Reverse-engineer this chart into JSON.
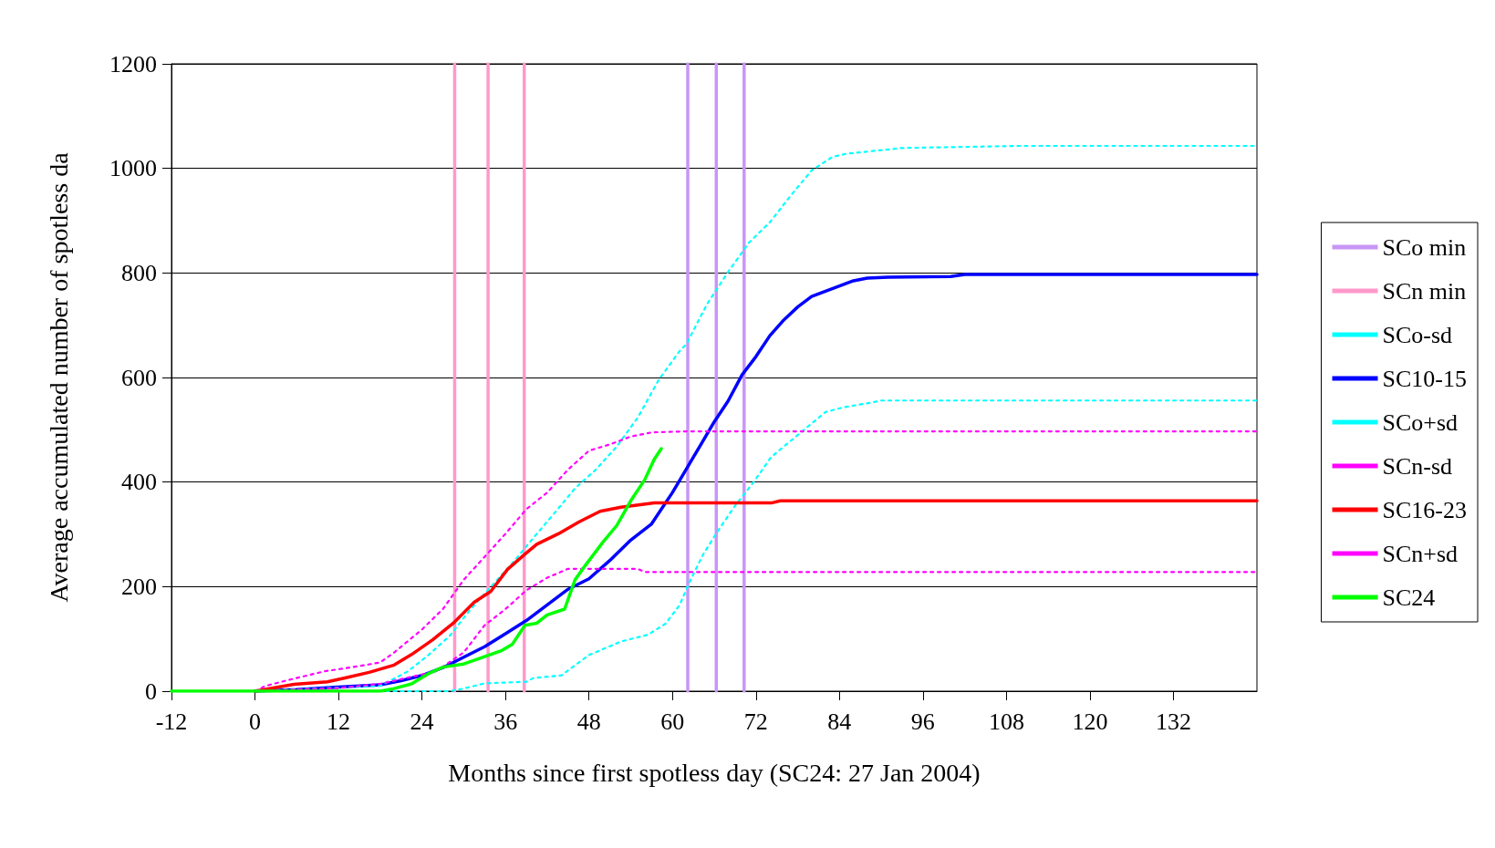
{
  "chart_data": {
    "type": "line",
    "xlabel": "Months since first spotless day (SC24: 27 Jan 2004)",
    "ylabel": "Average accumulated number of spotless da",
    "xlim": [
      -12,
      144
    ],
    "xticks": [
      -12,
      0,
      12,
      24,
      36,
      48,
      60,
      72,
      84,
      96,
      108,
      120,
      132
    ],
    "ylim": [
      0,
      1200
    ],
    "yticks": [
      0,
      200,
      400,
      600,
      800,
      1000,
      1200
    ],
    "grid": "y",
    "legend": "right",
    "marker": "none",
    "series": [
      {
        "name": "SCo min",
        "color": "#c896f5",
        "line_style": "solid",
        "x": [
          62.2,
          62.2
        ],
        "values": [
          0,
          1200
        ]
      },
      {
        "color": "#c896f5",
        "line_style": "solid",
        "x": [
          66.3,
          66.3
        ],
        "values": [
          0,
          1200
        ]
      },
      {
        "color": "#c896f5",
        "line_style": "solid",
        "x": [
          70.3,
          70.3
        ],
        "values": [
          0,
          1200
        ]
      },
      {
        "name": "SCn min",
        "color": "#ff99cc",
        "line_style": "solid",
        "x": [
          28.7,
          28.7
        ],
        "values": [
          0,
          1200
        ]
      },
      {
        "color": "#ff99cc",
        "line_style": "solid",
        "x": [
          33.5,
          33.5
        ],
        "values": [
          0,
          1200
        ]
      },
      {
        "color": "#ff99cc",
        "line_style": "solid",
        "x": [
          38.7,
          38.7
        ],
        "values": [
          0,
          1200
        ]
      },
      {
        "name": "SCo-sd",
        "color": "#00ffff",
        "line_style": "dotted",
        "x": [
          0,
          28,
          30,
          33,
          39,
          40,
          44,
          48,
          52.6,
          56.5,
          59,
          61,
          62.4,
          64.3,
          66.3,
          68.9,
          71.5,
          74.2,
          78.1,
          82,
          84.6,
          88.6,
          90,
          144
        ],
        "values": [
          0,
          0,
          5,
          15,
          18,
          25,
          30,
          69,
          95,
          108,
          129,
          164,
          207,
          259,
          302,
          353,
          397,
          448,
          491,
          534,
          543,
          552,
          556,
          556
        ]
      },
      {
        "name": "SC10-15",
        "color": "#0000ff",
        "line_style": "solid",
        "x": [
          0,
          6,
          12,
          18,
          21,
          24,
          27,
          30,
          33,
          36,
          39,
          42,
          45,
          48,
          51,
          54,
          57,
          60,
          62,
          64,
          66,
          68,
          70,
          72,
          74,
          76,
          78,
          80,
          82,
          84,
          86,
          88,
          91,
          100,
          102,
          144
        ],
        "values": [
          0,
          3,
          8,
          12,
          20,
          30,
          45,
          65,
          85,
          110,
          135,
          165,
          195,
          215,
          250,
          289,
          320,
          380,
          425,
          470,
          515,
          555,
          605,
          640,
          680,
          710,
          735,
          755,
          765,
          775,
          785,
          790,
          792,
          793,
          797,
          797
        ]
      },
      {
        "name": "SCo+sd",
        "color": "#00ffff",
        "line_style": "dotted",
        "x": [
          0,
          18,
          22,
          25,
          28,
          31,
          34,
          37,
          40,
          43,
          46,
          49,
          52,
          55,
          58,
          61,
          62,
          65,
          68,
          71,
          74,
          77,
          80,
          83,
          85,
          93,
          110,
          144
        ],
        "values": [
          0,
          10,
          38,
          70,
          106,
          157,
          201,
          245,
          293,
          340,
          388,
          424,
          468,
          523,
          595,
          650,
          664,
          741,
          802,
          858,
          897,
          948,
          996,
          1022,
          1028,
          1039,
          1043,
          1043
        ]
      },
      {
        "name": "SCn-sd",
        "color": "#ff00ff",
        "line_style": "dotted",
        "x": [
          0,
          12,
          18,
          22,
          26,
          30,
          33,
          36,
          39,
          42,
          45,
          55,
          56,
          144
        ],
        "values": [
          0,
          6,
          14,
          26,
          38,
          74,
          126,
          157,
          193,
          217,
          234,
          234,
          228,
          228
        ]
      },
      {
        "name": "SC16-23",
        "color": "#ff0000",
        "line_style": "solid",
        "x": [
          0,
          5.6,
          10.4,
          12.8,
          16.4,
          20,
          22.5,
          25.5,
          28.5,
          31.5,
          33.9,
          36.3,
          38.7,
          40.5,
          43.6,
          46.6,
          49.6,
          52.6,
          57.4,
          74.2,
          75.5,
          144
        ],
        "values": [
          0,
          13,
          18,
          25,
          36,
          50,
          70,
          98,
          130,
          170,
          191,
          233,
          261,
          281,
          301,
          324,
          344,
          352,
          360,
          360,
          364,
          364
        ]
      },
      {
        "name": "SCn+sd",
        "color": "#ff00ff",
        "line_style": "dotted",
        "x": [
          0,
          1.5,
          5,
          10,
          15,
          18,
          20,
          24,
          27,
          30,
          33,
          36,
          39,
          42,
          45,
          48,
          51,
          54,
          57,
          62,
          144
        ],
        "values": [
          0,
          10,
          22,
          38,
          48,
          55,
          74,
          118,
          157,
          213,
          257,
          301,
          348,
          380,
          424,
          460,
          472,
          487,
          495,
          497,
          497
        ]
      },
      {
        "name": "SC24",
        "color": "#00ff00",
        "line_style": "solid",
        "x": [
          -12,
          18,
          20,
          22.5,
          25,
          27,
          30,
          33,
          35.5,
          37,
          38.8,
          40.5,
          42,
          44.5,
          46,
          47.5,
          50,
          52,
          54,
          56,
          57.4,
          58.4
        ],
        "values": [
          0,
          0,
          5,
          14,
          34,
          46,
          52,
          66,
          78,
          90,
          126,
          130,
          146,
          157,
          213,
          241,
          285,
          317,
          364,
          404,
          444,
          464
        ]
      }
    ]
  }
}
